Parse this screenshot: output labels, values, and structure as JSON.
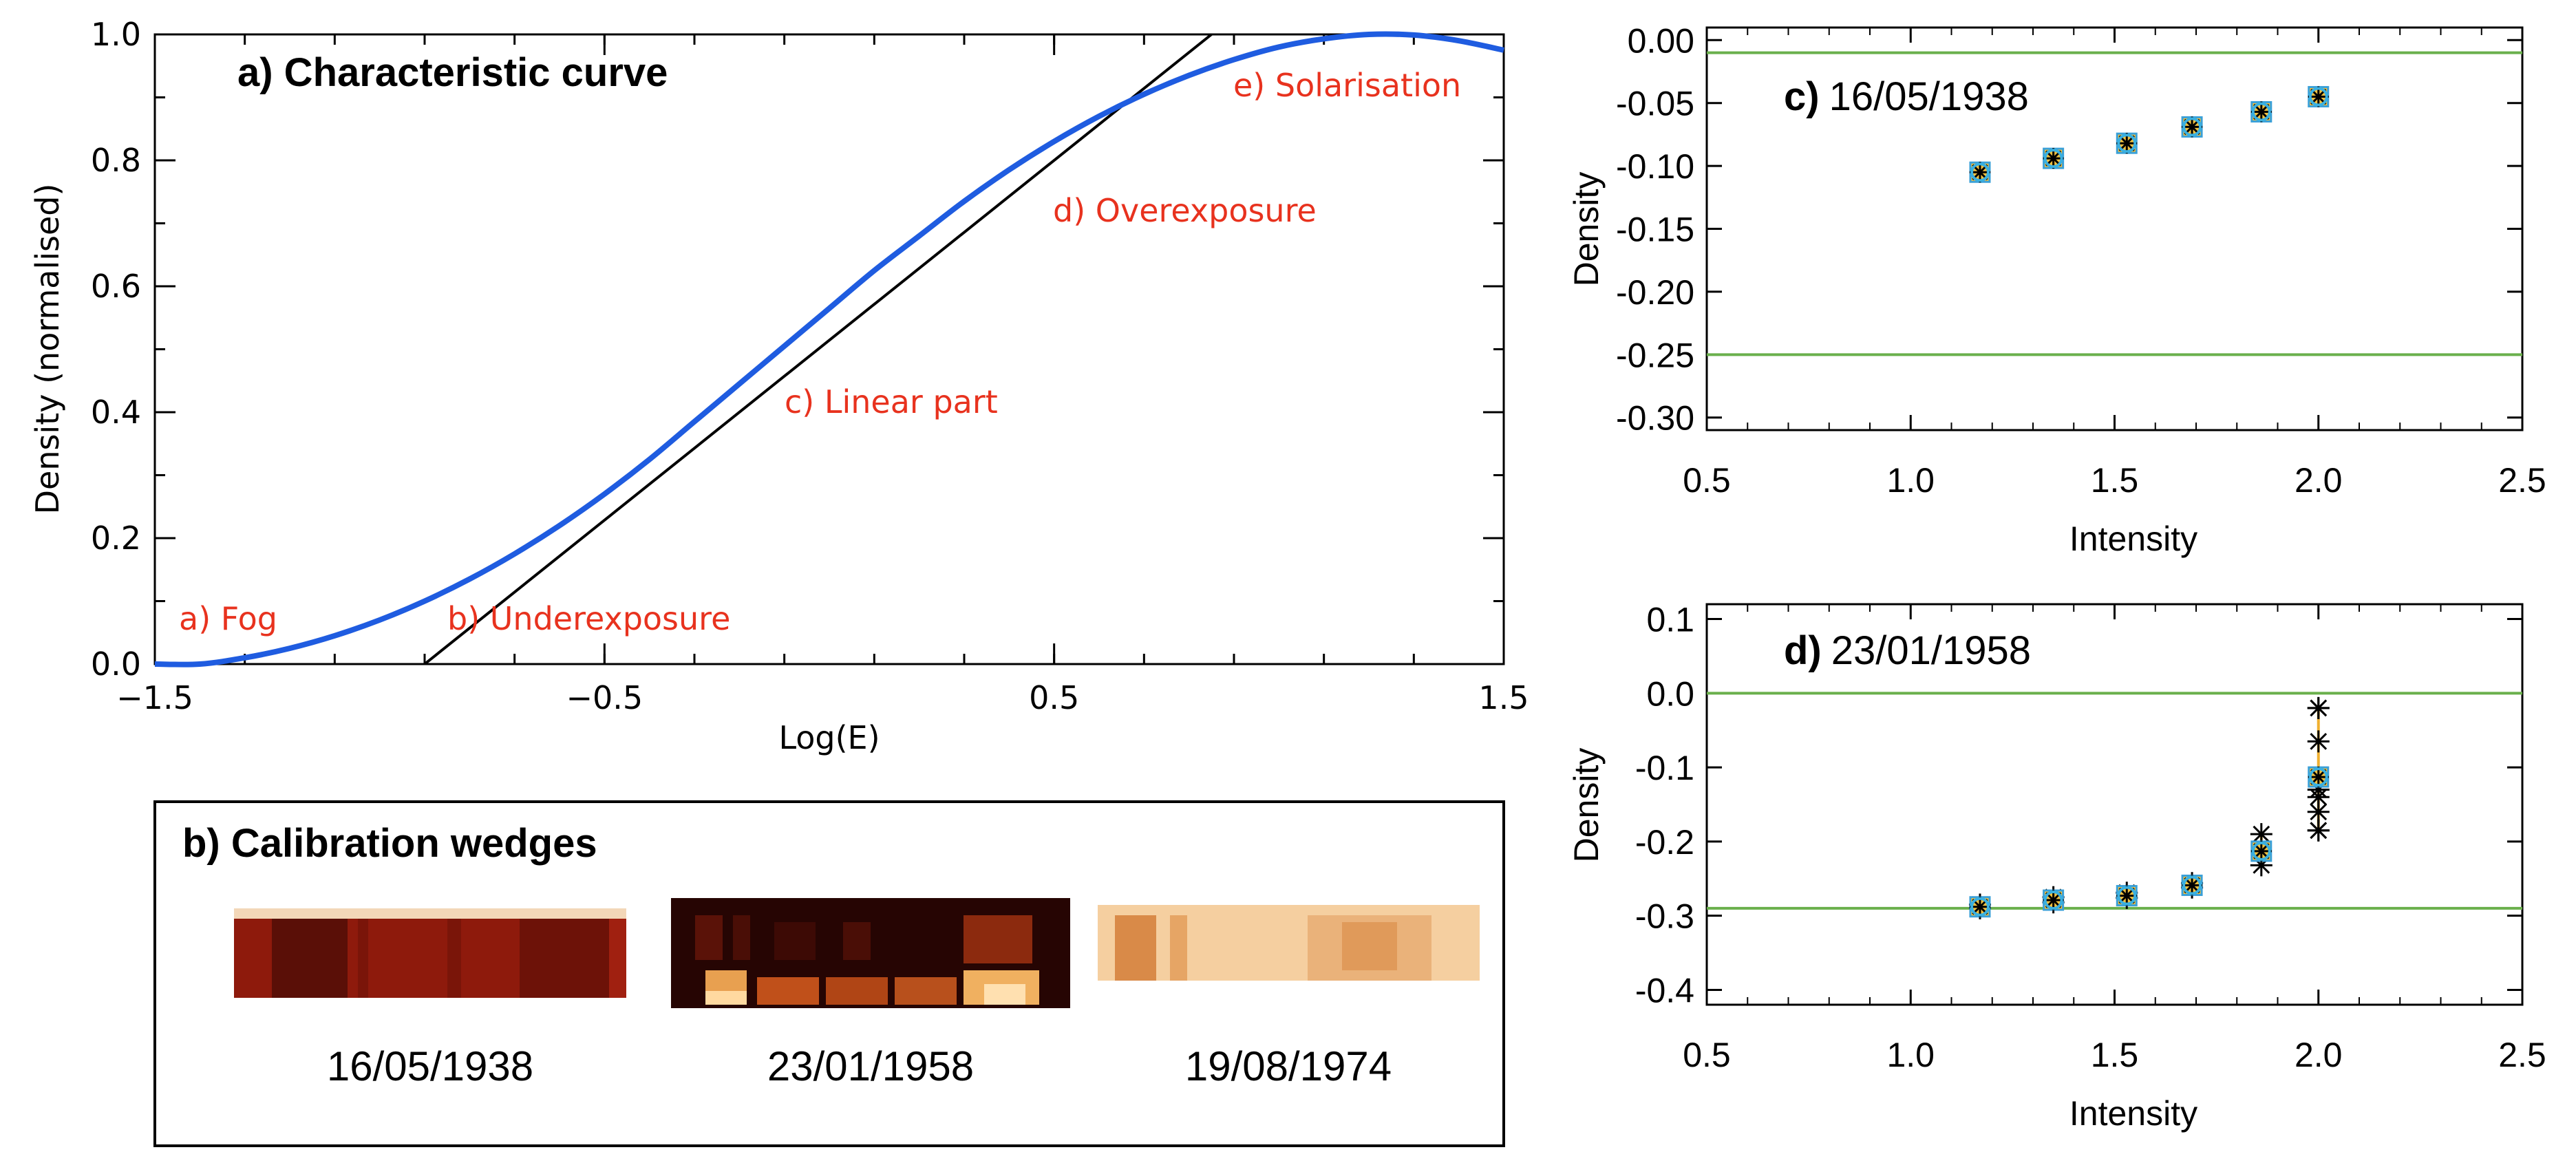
{
  "panel_a": {
    "title": "a) Characteristic curve",
    "annotations": [
      "a) Fog",
      "b) Underexposure",
      "c) Linear part",
      "d) Overexposure",
      "e) Solarisation"
    ],
    "colors": {
      "curve": "#1f5ce0",
      "tangent": "#000000",
      "annotation": "#e8321e"
    }
  },
  "panel_b": {
    "title": "b) Calibration wedges",
    "wedges": [
      "16/05/1938",
      "23/01/1958",
      "19/08/1974"
    ]
  },
  "panel_c": {
    "prefix": "c)",
    "date": "16/05/1938"
  },
  "panel_d": {
    "prefix": "d)",
    "date": "23/01/1958"
  },
  "chart_data": [
    {
      "type": "line",
      "title": "a) Characteristic curve",
      "xlabel": "Log(E)",
      "ylabel": "Density (normalised)",
      "xlim": [
        -1.5,
        1.5
      ],
      "ylim": [
        0.0,
        1.0
      ],
      "x_ticks": [
        "−1.5",
        "−0.5",
        "0.5",
        "1.5"
      ],
      "y_ticks": [
        "0.0",
        "0.2",
        "0.4",
        "0.6",
        "0.8",
        "1.0"
      ],
      "series": [
        {
          "x": [
            -1.5,
            -1.4,
            -1.3,
            -1.2,
            -1.1,
            -1.0,
            -0.9,
            -0.8,
            -0.7,
            -0.6,
            -0.5,
            -0.4,
            -0.3,
            -0.2,
            -0.1,
            0.0,
            0.1,
            0.2,
            0.3,
            0.4,
            0.5,
            0.6,
            0.7,
            0.8,
            0.9,
            1.0,
            1.1,
            1.2,
            1.3,
            1.4,
            1.5
          ],
          "y": [
            0.0,
            0.0,
            0.01,
            0.025,
            0.045,
            0.07,
            0.1,
            0.135,
            0.175,
            0.22,
            0.27,
            0.325,
            0.385,
            0.445,
            0.505,
            0.565,
            0.625,
            0.68,
            0.735,
            0.785,
            0.83,
            0.87,
            0.905,
            0.935,
            0.96,
            0.98,
            0.993,
            1.0,
            0.999,
            0.99,
            0.975
          ]
        },
        {
          "x": [
            -0.9,
            0.85
          ],
          "y": [
            0.0,
            1.0
          ]
        }
      ]
    },
    {
      "type": "scatter",
      "title": "c) 16/05/1938",
      "xlabel": "Intensity",
      "ylabel": "Density",
      "xlim": [
        0.5,
        2.5
      ],
      "ylim": [
        -0.31,
        0.01
      ],
      "x_ticks": [
        "0.5",
        "1.0",
        "1.5",
        "2.0",
        "2.5"
      ],
      "y_ticks": [
        "0.00",
        "-0.05",
        "-0.10",
        "-0.15",
        "-0.20",
        "-0.25",
        "-0.30"
      ],
      "reference_lines": [
        -0.01,
        -0.25
      ],
      "x": [
        1.17,
        1.35,
        1.53,
        1.69,
        1.86,
        2.0
      ],
      "y": [
        -0.105,
        -0.094,
        -0.082,
        -0.069,
        -0.057,
        -0.045
      ]
    },
    {
      "type": "scatter",
      "title": "d) 23/01/1958",
      "xlabel": "Intensity",
      "ylabel": "Density",
      "xlim": [
        0.5,
        2.5
      ],
      "ylim": [
        -0.42,
        0.12
      ],
      "x_ticks": [
        "0.5",
        "1.0",
        "1.5",
        "2.0",
        "2.5"
      ],
      "y_ticks": [
        "0.1",
        "0.0",
        "-0.1",
        "-0.2",
        "-0.3",
        "-0.4"
      ],
      "reference_lines": [
        0.0,
        -0.29
      ],
      "x": [
        1.17,
        1.35,
        1.53,
        1.69,
        1.86,
        2.0
      ],
      "y": [
        -0.288,
        -0.279,
        -0.273,
        -0.259,
        -0.213,
        -0.113
      ],
      "y_min": [
        -0.29,
        -0.282,
        -0.276,
        -0.262,
        -0.232,
        -0.185
      ],
      "y_max": [
        -0.285,
        -0.275,
        -0.269,
        -0.256,
        -0.19,
        -0.02
      ],
      "replicates_x2": [
        -0.185,
        -0.16,
        -0.14,
        -0.13,
        -0.065,
        -0.02
      ]
    }
  ]
}
